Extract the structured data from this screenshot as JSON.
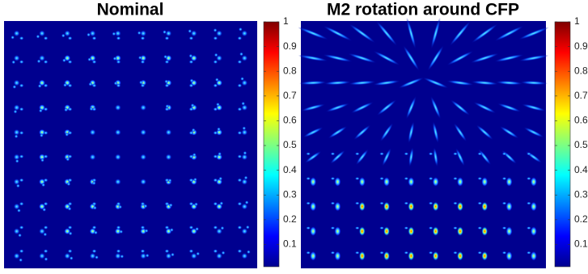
{
  "chart_data": [
    {
      "type": "image",
      "title": "Nominal",
      "colormap": "jet",
      "clim": [
        0.01,
        1
      ],
      "cticks": [
        0.1,
        0.2,
        0.3,
        0.4,
        0.5,
        0.6,
        0.7,
        0.8,
        0.9,
        1
      ]
    },
    {
      "type": "image",
      "title": "M2 rotation around CFP",
      "colormap": "jet",
      "clim": [
        0.01,
        1
      ],
      "cticks": [
        0.1,
        0.2,
        0.3,
        0.4,
        0.5,
        0.6,
        0.7,
        0.8,
        0.9,
        1
      ]
    }
  ]
}
